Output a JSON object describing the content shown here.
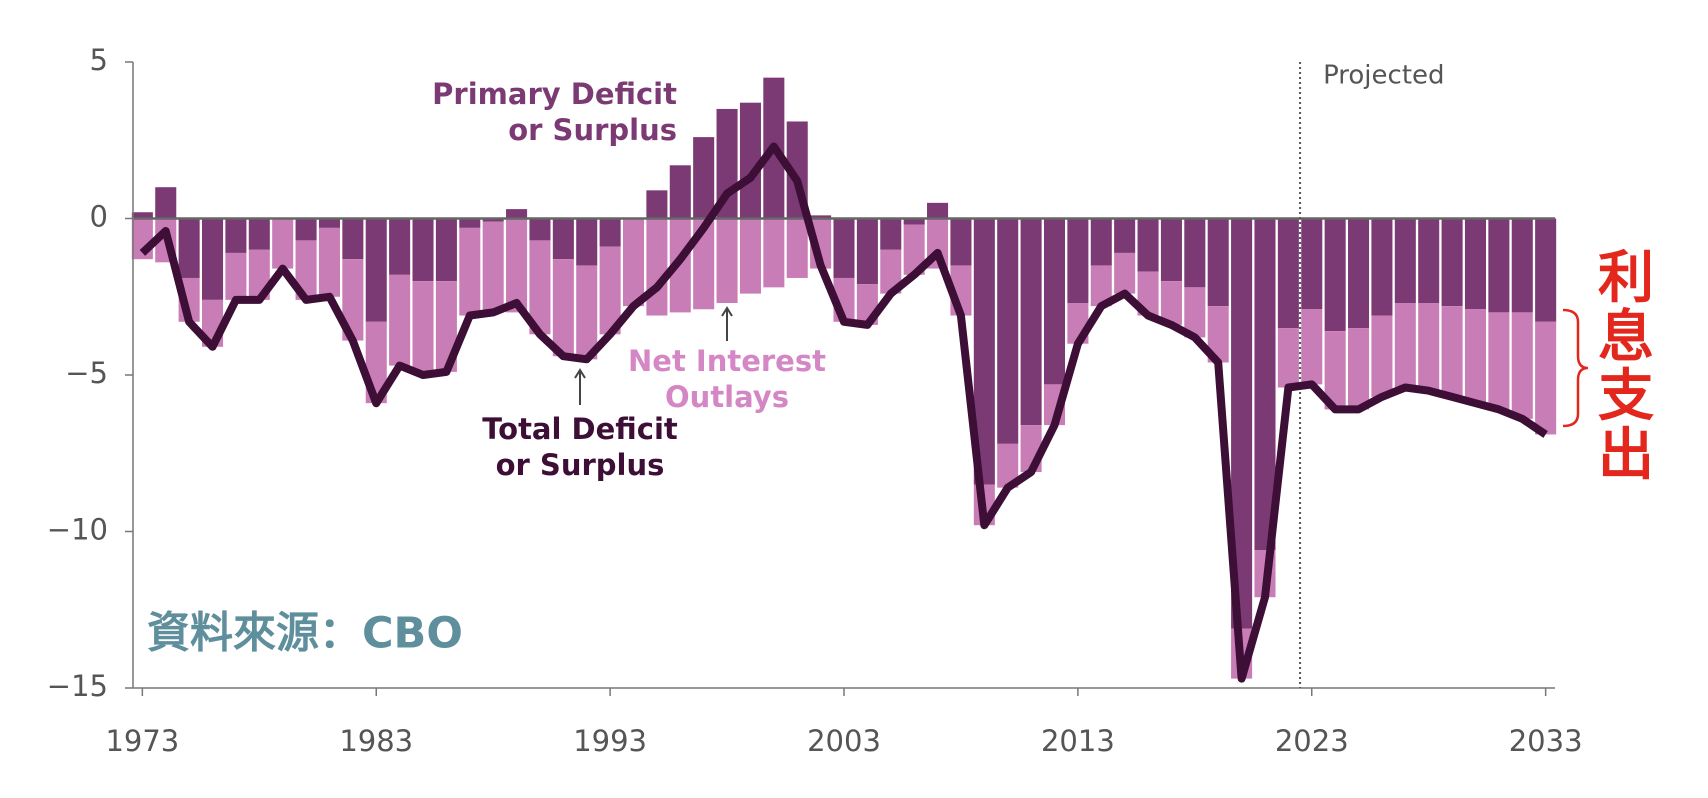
{
  "chart_data": {
    "type": "bar",
    "x": [
      1973,
      1974,
      1975,
      1976,
      1977,
      1978,
      1979,
      1980,
      1981,
      1982,
      1983,
      1984,
      1985,
      1986,
      1987,
      1988,
      1989,
      1990,
      1991,
      1992,
      1993,
      1994,
      1995,
      1996,
      1997,
      1998,
      1999,
      2000,
      2001,
      2002,
      2003,
      2004,
      2005,
      2006,
      2007,
      2008,
      2009,
      2010,
      2011,
      2012,
      2013,
      2014,
      2015,
      2016,
      2017,
      2018,
      2019,
      2020,
      2021,
      2022,
      2023,
      2024,
      2025,
      2026,
      2027,
      2028,
      2029,
      2030,
      2031,
      2032,
      2033
    ],
    "series": [
      {
        "color": "#7b3a74",
        "values": [
          0.2,
          1.0,
          -1.9,
          -2.6,
          -1.1,
          -1.0,
          0.0,
          -0.7,
          -0.3,
          -1.3,
          -3.3,
          -1.8,
          -2.0,
          -2.0,
          -0.3,
          -0.1,
          0.3,
          -0.7,
          -1.3,
          -1.5,
          -0.9,
          0.0,
          0.9,
          1.7,
          2.6,
          3.5,
          3.7,
          4.5,
          3.1,
          0.1,
          -1.9,
          -2.1,
          -1.0,
          -0.2,
          0.5,
          -1.5,
          -8.5,
          -7.2,
          -6.6,
          -5.3,
          -2.7,
          -1.5,
          -1.1,
          -1.7,
          -2.0,
          -2.2,
          -2.8,
          -13.1,
          -10.6,
          -3.5,
          -2.9,
          -3.6,
          -3.5,
          -3.1,
          -2.7,
          -2.7,
          -2.8,
          -2.9,
          -3.0,
          -3.0,
          -3.3
        ]
      },
      {
        "color": "#c97db7",
        "values": [
          -1.3,
          -1.4,
          -1.4,
          -1.5,
          -1.5,
          -1.6,
          -1.6,
          -1.9,
          -2.2,
          -2.6,
          -2.6,
          -2.9,
          -3.0,
          -2.9,
          -2.8,
          -2.9,
          -3.0,
          -3.0,
          -3.1,
          -3.0,
          -2.8,
          -2.8,
          -3.1,
          -3.0,
          -2.9,
          -2.7,
          -2.4,
          -2.2,
          -1.9,
          -1.6,
          -1.4,
          -1.3,
          -1.4,
          -1.6,
          -1.6,
          -1.6,
          -1.3,
          -1.4,
          -1.5,
          -1.3,
          -1.3,
          -1.3,
          -1.3,
          -1.4,
          -1.4,
          -1.6,
          -1.8,
          -1.6,
          -1.5,
          -1.9,
          -2.4,
          -2.5,
          -2.6,
          -2.6,
          -2.7,
          -2.8,
          -2.9,
          -3.0,
          -3.1,
          -3.4,
          -3.6
        ]
      },
      {
        "color": "#3d0e36",
        "values": [
          -1.1,
          -0.4,
          -3.3,
          -4.1,
          -2.6,
          -2.6,
          -1.6,
          -2.6,
          -2.5,
          -3.9,
          -5.9,
          -4.7,
          -5.0,
          -4.9,
          -3.1,
          -3.0,
          -2.7,
          -3.7,
          -4.4,
          -4.5,
          -3.7,
          -2.8,
          -2.2,
          -1.3,
          -0.3,
          0.8,
          1.3,
          2.3,
          1.2,
          -1.5,
          -3.3,
          -3.4,
          -2.4,
          -1.8,
          -1.1,
          -3.1,
          -9.8,
          -8.6,
          -8.1,
          -6.6,
          -4.0,
          -2.8,
          -2.4,
          -3.1,
          -3.4,
          -3.8,
          -4.6,
          -14.7,
          -12.1,
          -5.4,
          -5.3,
          -6.1,
          -6.1,
          -5.7,
          -5.4,
          -5.5,
          -5.7,
          -5.9,
          -6.1,
          -6.4,
          -6.9
        ]
      }
    ],
    "xlim": [
      1972.6,
      2033.4
    ],
    "xticks": [
      1973,
      1983,
      1993,
      2003,
      2013,
      2023,
      2033
    ],
    "ylim": [
      -15,
      5
    ],
    "yticks": [
      5,
      0,
      {
        "value": -5,
        "label": "−5"
      },
      {
        "value": -10,
        "label": "−10"
      },
      {
        "value": -15,
        "label": "−15"
      }
    ],
    "annotations": [
      {
        "lines": [
          "Primary Deficit",
          "or Surplus"
        ],
        "color": "#7b3a74"
      },
      {
        "lines": [
          "Net Interest",
          "Outlays"
        ],
        "color": "#d487c4"
      },
      {
        "lines": [
          "Total Deficit",
          "or Surplus"
        ],
        "color": "#3d0e36"
      }
    ],
    "projection": {
      "x": 2022.5,
      "label": "Projected"
    },
    "source": "資料來源：CBO",
    "bracket_label": [
      "利",
      "息",
      "支",
      "出"
    ]
  }
}
